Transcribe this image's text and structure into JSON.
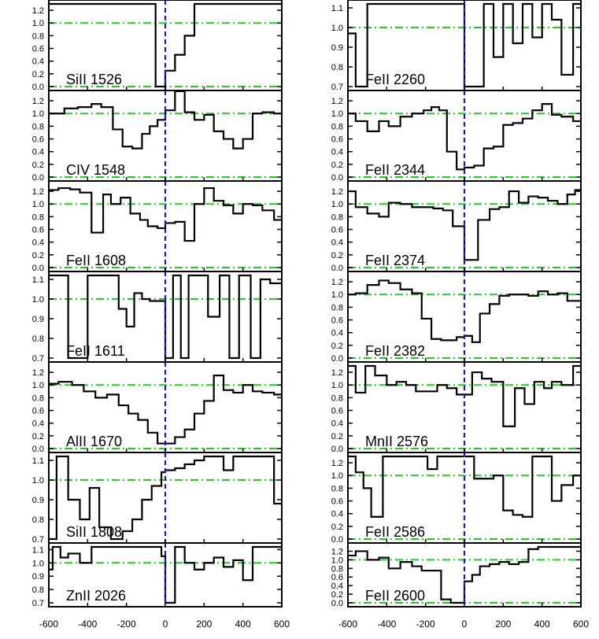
{
  "chart_data": [
    {
      "type": "line",
      "title": "",
      "label": "SiII 1526",
      "ylim": [
        0.0,
        1.3
      ],
      "yticks": [
        "0.0",
        "0.2",
        "0.4",
        "0.6",
        "0.8",
        "1.0",
        "1.2"
      ],
      "x": [
        -600,
        -500,
        -400,
        -300,
        -200,
        -100,
        -50,
        0,
        50,
        100,
        150,
        200,
        250,
        300,
        350,
        400,
        500,
        600
      ],
      "y": [
        1.3,
        1.3,
        1.3,
        1.3,
        1.3,
        1.3,
        0.0,
        0.25,
        0.5,
        0.8,
        1.3,
        1.3,
        1.3,
        1.3,
        1.3,
        1.3,
        1.3,
        1.3
      ]
    },
    {
      "type": "line",
      "title": "",
      "label": "CIV 1548",
      "ylim": [
        0.0,
        1.3
      ],
      "yticks": [
        "0.0",
        "0.2",
        "0.4",
        "0.6",
        "0.8",
        "1.0",
        "1.2"
      ],
      "x": [
        -600,
        -520,
        -450,
        -380,
        -330,
        -270,
        -220,
        -170,
        -120,
        -80,
        -40,
        0,
        50,
        100,
        150,
        200,
        250,
        300,
        350,
        400,
        450,
        500,
        560,
        600
      ],
      "y": [
        1.0,
        1.08,
        1.1,
        1.15,
        1.1,
        0.75,
        0.48,
        0.45,
        0.68,
        0.8,
        0.9,
        1.05,
        1.35,
        1.02,
        0.9,
        0.98,
        0.72,
        0.6,
        0.45,
        0.6,
        1.0,
        1.02,
        1.0,
        0.9
      ]
    },
    {
      "type": "line",
      "title": "",
      "label": "FeII 1608",
      "ylim": [
        0.0,
        1.3
      ],
      "yticks": [
        "0.0",
        "0.2",
        "0.4",
        "0.6",
        "0.8",
        "1.0",
        "1.2"
      ],
      "x": [
        -600,
        -550,
        -490,
        -440,
        -380,
        -320,
        -280,
        -230,
        -180,
        -130,
        -90,
        -40,
        0,
        50,
        100,
        150,
        200,
        250,
        300,
        350,
        400,
        450,
        500,
        560,
        600
      ],
      "y": [
        1.22,
        1.25,
        1.23,
        1.18,
        0.55,
        1.15,
        1.0,
        1.1,
        0.85,
        0.75,
        0.65,
        0.62,
        0.7,
        0.72,
        0.42,
        1.0,
        1.25,
        1.05,
        0.98,
        0.85,
        1.0,
        0.98,
        0.9,
        0.75,
        0.65
      ]
    },
    {
      "type": "line",
      "title": "",
      "label": "FeII 1611",
      "ylim": [
        0.7,
        1.12
      ],
      "yticks": [
        "0.7",
        "0.8",
        "0.9",
        "1.0",
        "1.1"
      ],
      "x": [
        -600,
        -500,
        -400,
        -340,
        -280,
        -240,
        -200,
        -160,
        -120,
        -80,
        -40,
        0,
        40,
        80,
        120,
        160,
        220,
        280,
        330,
        380,
        440,
        490,
        540,
        600
      ],
      "y": [
        1.12,
        0.7,
        1.12,
        1.12,
        1.12,
        0.95,
        0.86,
        1.03,
        1.0,
        0.99,
        0.99,
        0.7,
        1.12,
        0.7,
        1.12,
        1.12,
        0.91,
        1.12,
        0.7,
        1.12,
        0.7,
        1.1,
        1.08,
        1.12
      ]
    },
    {
      "type": "line",
      "title": "",
      "label": "AlII 1670",
      "ylim": [
        0.0,
        1.3
      ],
      "yticks": [
        "0.0",
        "0.2",
        "0.4",
        "0.6",
        "0.8",
        "1.0",
        "1.2"
      ],
      "x": [
        -600,
        -550,
        -480,
        -420,
        -360,
        -300,
        -240,
        -190,
        -140,
        -90,
        -40,
        0,
        50,
        100,
        150,
        200,
        250,
        300,
        350,
        400,
        450,
        500,
        560,
        600
      ],
      "y": [
        1.02,
        1.05,
        1.0,
        0.9,
        0.8,
        0.85,
        0.68,
        0.55,
        0.45,
        0.25,
        0.08,
        0.08,
        0.18,
        0.3,
        0.55,
        0.75,
        1.15,
        0.92,
        0.88,
        1.0,
        0.9,
        0.88,
        0.85,
        1.12
      ]
    },
    {
      "type": "line",
      "title": "",
      "label": "SiII 1808",
      "ylim": [
        0.7,
        1.12
      ],
      "yticks": [
        "0.7",
        "0.8",
        "0.9",
        "1.0",
        "1.1"
      ],
      "x": [
        -600,
        -560,
        -500,
        -440,
        -390,
        -340,
        -280,
        -220,
        -170,
        -120,
        -70,
        -20,
        0,
        50,
        100,
        150,
        200,
        250,
        300,
        350,
        400,
        450,
        500,
        560,
        600
      ],
      "y": [
        0.7,
        1.12,
        0.9,
        0.8,
        0.96,
        0.76,
        0.7,
        0.74,
        0.8,
        0.9,
        0.97,
        1.04,
        1.05,
        1.06,
        1.08,
        1.1,
        1.12,
        1.12,
        1.05,
        1.12,
        1.12,
        1.12,
        1.12,
        0.88,
        0.88
      ]
    },
    {
      "type": "line",
      "title": "",
      "label": "ZnII 2026",
      "ylim": [
        0.7,
        1.12
      ],
      "yticks": [
        "0.7",
        "0.8",
        "0.9",
        "1.0",
        "1.1"
      ],
      "x": [
        -600,
        -580,
        -540,
        -500,
        -440,
        -380,
        -320,
        -260,
        -210,
        -160,
        -110,
        -60,
        -20,
        0,
        50,
        100,
        150,
        200,
        250,
        300,
        350,
        400,
        450,
        500,
        560,
        600
      ],
      "y": [
        0.95,
        1.12,
        1.04,
        1.07,
        1.0,
        1.12,
        1.12,
        1.12,
        1.12,
        1.12,
        1.12,
        1.12,
        1.05,
        0.7,
        1.12,
        1.0,
        0.95,
        1.0,
        1.04,
        0.97,
        1.02,
        0.87,
        1.12,
        1.12,
        1.12,
        1.12
      ]
    },
    {
      "type": "line",
      "title": "",
      "label": "FeII 2260",
      "ylim": [
        0.7,
        1.12
      ],
      "yticks": [
        "0.7",
        "0.8",
        "0.9",
        "1.0",
        "1.1"
      ],
      "x": [
        -600,
        -560,
        -500,
        -440,
        -390,
        -340,
        -290,
        -240,
        -190,
        -140,
        -90,
        -40,
        0,
        50,
        100,
        150,
        200,
        250,
        300,
        350,
        400,
        450,
        500,
        560,
        600
      ],
      "y": [
        0.97,
        0.7,
        1.12,
        1.12,
        1.12,
        1.12,
        1.12,
        1.12,
        1.12,
        1.12,
        1.12,
        1.12,
        0.7,
        0.7,
        1.12,
        0.85,
        1.12,
        0.92,
        1.12,
        0.95,
        1.12,
        1.04,
        0.76,
        1.12,
        1.12
      ]
    },
    {
      "type": "line",
      "title": "",
      "label": "FeII 2344",
      "ylim": [
        0.0,
        1.3
      ],
      "yticks": [
        "0.0",
        "0.2",
        "0.4",
        "0.6",
        "0.8",
        "1.0",
        "1.2"
      ],
      "x": [
        -600,
        -560,
        -500,
        -440,
        -390,
        -330,
        -270,
        -210,
        -170,
        -130,
        -90,
        -40,
        0,
        50,
        100,
        150,
        200,
        250,
        300,
        350,
        400,
        450,
        500,
        560,
        600
      ],
      "y": [
        1.0,
        0.88,
        0.72,
        0.88,
        0.8,
        0.95,
        1.0,
        1.05,
        1.1,
        1.05,
        0.4,
        0.12,
        0.15,
        0.18,
        0.45,
        0.48,
        0.82,
        0.85,
        0.92,
        1.05,
        1.15,
        0.98,
        0.95,
        0.88,
        0.9
      ]
    },
    {
      "type": "line",
      "title": "",
      "label": "FeII 2374",
      "ylim": [
        0.0,
        1.3
      ],
      "yticks": [
        "0.0",
        "0.2",
        "0.4",
        "0.6",
        "0.8",
        "1.0",
        "1.2"
      ],
      "x": [
        -600,
        -560,
        -500,
        -440,
        -390,
        -330,
        -270,
        -210,
        -160,
        -110,
        -60,
        0,
        30,
        70,
        130,
        180,
        230,
        280,
        330,
        380,
        430,
        480,
        530,
        570,
        600
      ],
      "y": [
        1.2,
        0.95,
        0.85,
        0.8,
        1.02,
        1.0,
        0.95,
        0.95,
        0.93,
        0.9,
        0.65,
        0.12,
        0.12,
        0.75,
        0.92,
        0.95,
        1.2,
        1.02,
        1.12,
        1.1,
        1.05,
        1.0,
        1.15,
        1.22,
        1.22
      ]
    },
    {
      "type": "line",
      "title": "",
      "label": "FeII 2382",
      "ylim": [
        0.0,
        1.3
      ],
      "yticks": [
        "0.0",
        "0.2",
        "0.4",
        "0.6",
        "0.8",
        "1.0",
        "1.2"
      ],
      "x": [
        -600,
        -560,
        -500,
        -440,
        -390,
        -330,
        -270,
        -220,
        -170,
        -120,
        -80,
        -40,
        0,
        40,
        80,
        130,
        180,
        230,
        280,
        330,
        380,
        430,
        480,
        530,
        570,
        600
      ],
      "y": [
        1.0,
        1.02,
        1.15,
        1.22,
        1.18,
        1.08,
        1.02,
        0.62,
        0.3,
        0.28,
        0.28,
        0.33,
        0.35,
        0.25,
        0.7,
        0.85,
        0.98,
        1.0,
        1.0,
        0.98,
        1.05,
        1.0,
        1.02,
        0.9,
        0.9,
        0.92
      ]
    },
    {
      "type": "line",
      "title": "",
      "label": "MnII 2576",
      "ylim": [
        0.0,
        1.3
      ],
      "yticks": [
        "0.0",
        "0.2",
        "0.4",
        "0.6",
        "0.8",
        "1.0",
        "1.2"
      ],
      "x": [
        -600,
        -560,
        -510,
        -460,
        -400,
        -350,
        -300,
        -250,
        -190,
        -140,
        -90,
        -40,
        0,
        40,
        90,
        140,
        200,
        260,
        310,
        360,
        410,
        450,
        500,
        560,
        600
      ],
      "y": [
        1.3,
        0.88,
        1.3,
        1.15,
        1.0,
        1.05,
        1.0,
        0.9,
        0.9,
        1.0,
        0.95,
        0.85,
        0.85,
        1.2,
        1.1,
        1.05,
        0.35,
        0.95,
        0.7,
        1.05,
        0.95,
        1.05,
        1.0,
        1.3,
        1.3
      ]
    },
    {
      "type": "line",
      "title": "",
      "label": "FeII 2586",
      "ylim": [
        0.0,
        1.3
      ],
      "yticks": [
        "0.0",
        "0.2",
        "0.4",
        "0.6",
        "0.8",
        "1.0",
        "1.2"
      ],
      "x": [
        -600,
        -560,
        -520,
        -480,
        -420,
        -360,
        -300,
        -250,
        -190,
        -140,
        -90,
        -40,
        0,
        50,
        100,
        150,
        200,
        250,
        300,
        350,
        400,
        450,
        500,
        560,
        600
      ],
      "y": [
        1.3,
        1.05,
        0.8,
        0.35,
        1.3,
        1.3,
        1.3,
        1.3,
        1.1,
        1.3,
        1.3,
        1.3,
        1.3,
        0.95,
        0.95,
        1.0,
        0.45,
        0.38,
        0.35,
        1.3,
        1.3,
        0.6,
        0.85,
        1.0,
        1.0
      ]
    },
    {
      "type": "line",
      "title": "",
      "label": "FeII 2600",
      "ylim": [
        0.0,
        1.3
      ],
      "yticks": [
        "0.0",
        "0.2",
        "0.4",
        "0.6",
        "0.8",
        "1.0",
        "1.2"
      ],
      "x": [
        -600,
        -560,
        -500,
        -440,
        -390,
        -330,
        -270,
        -220,
        -170,
        -120,
        -70,
        -20,
        0,
        40,
        80,
        130,
        180,
        230,
        280,
        330,
        380,
        430,
        480,
        530,
        570,
        600
      ],
      "y": [
        1.1,
        1.2,
        1.0,
        1.05,
        0.8,
        0.95,
        0.85,
        0.75,
        0.75,
        0.08,
        0.0,
        0.0,
        0.5,
        0.65,
        0.85,
        0.9,
        0.95,
        0.9,
        0.95,
        1.25,
        1.3,
        1.3,
        1.3,
        1.3,
        1.3,
        1.3
      ]
    }
  ],
  "shared_x_axis": {
    "xlim": [
      -600,
      600
    ],
    "tick_labels": [
      "-600",
      "-400",
      "-200",
      "0",
      "200",
      "400",
      "600"
    ]
  },
  "colors": {
    "data_line": "#000000",
    "continuum_line": "#22cc22",
    "zero_velocity_line": "#1a1acc",
    "frame": "#000000"
  }
}
